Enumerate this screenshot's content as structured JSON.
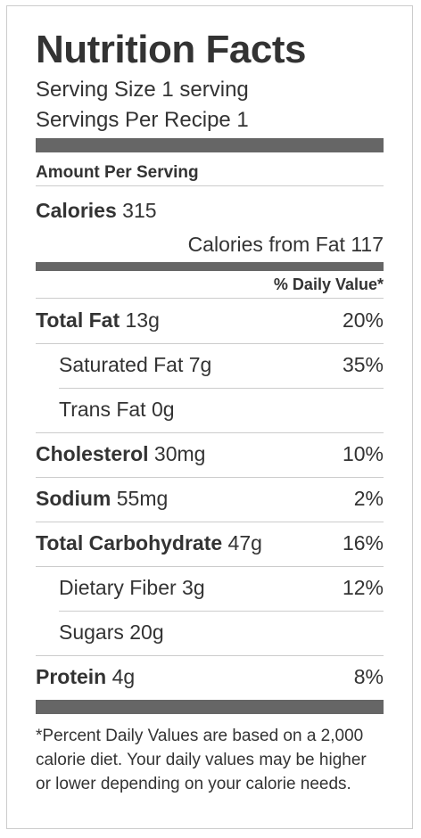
{
  "title": "Nutrition Facts",
  "serving_size": "Serving Size 1 serving",
  "servings_per_recipe": "Servings Per Recipe 1",
  "amount_per_serving": "Amount Per Serving",
  "calories": {
    "label": "Calories",
    "value": "315"
  },
  "calories_from_fat": "Calories from Fat 117",
  "daily_value_header": "% Daily Value*",
  "nutrients": [
    {
      "name": "Total Fat",
      "amount": "13g",
      "dv": "20%"
    },
    {
      "name": "Saturated Fat",
      "amount": "7g",
      "dv": "35%"
    },
    {
      "name": "Trans Fat",
      "amount": "0g",
      "dv": ""
    },
    {
      "name": "Cholesterol",
      "amount": "30mg",
      "dv": "10%"
    },
    {
      "name": "Sodium",
      "amount": "55mg",
      "dv": "2%"
    },
    {
      "name": "Total Carbohydrate",
      "amount": "47g",
      "dv": "16%"
    },
    {
      "name": "Dietary Fiber",
      "amount": "3g",
      "dv": "12%"
    },
    {
      "name": "Sugars",
      "amount": "20g",
      "dv": ""
    },
    {
      "name": "Protein",
      "amount": "4g",
      "dv": "8%"
    }
  ],
  "footnote": "*Percent Daily Values are based on a 2,000 calorie diet. Your daily values may be higher or lower depending on your calorie needs.",
  "colors": {
    "thick_bar": "#666666",
    "thin_rule": "#cccccc",
    "text": "#333333"
  }
}
